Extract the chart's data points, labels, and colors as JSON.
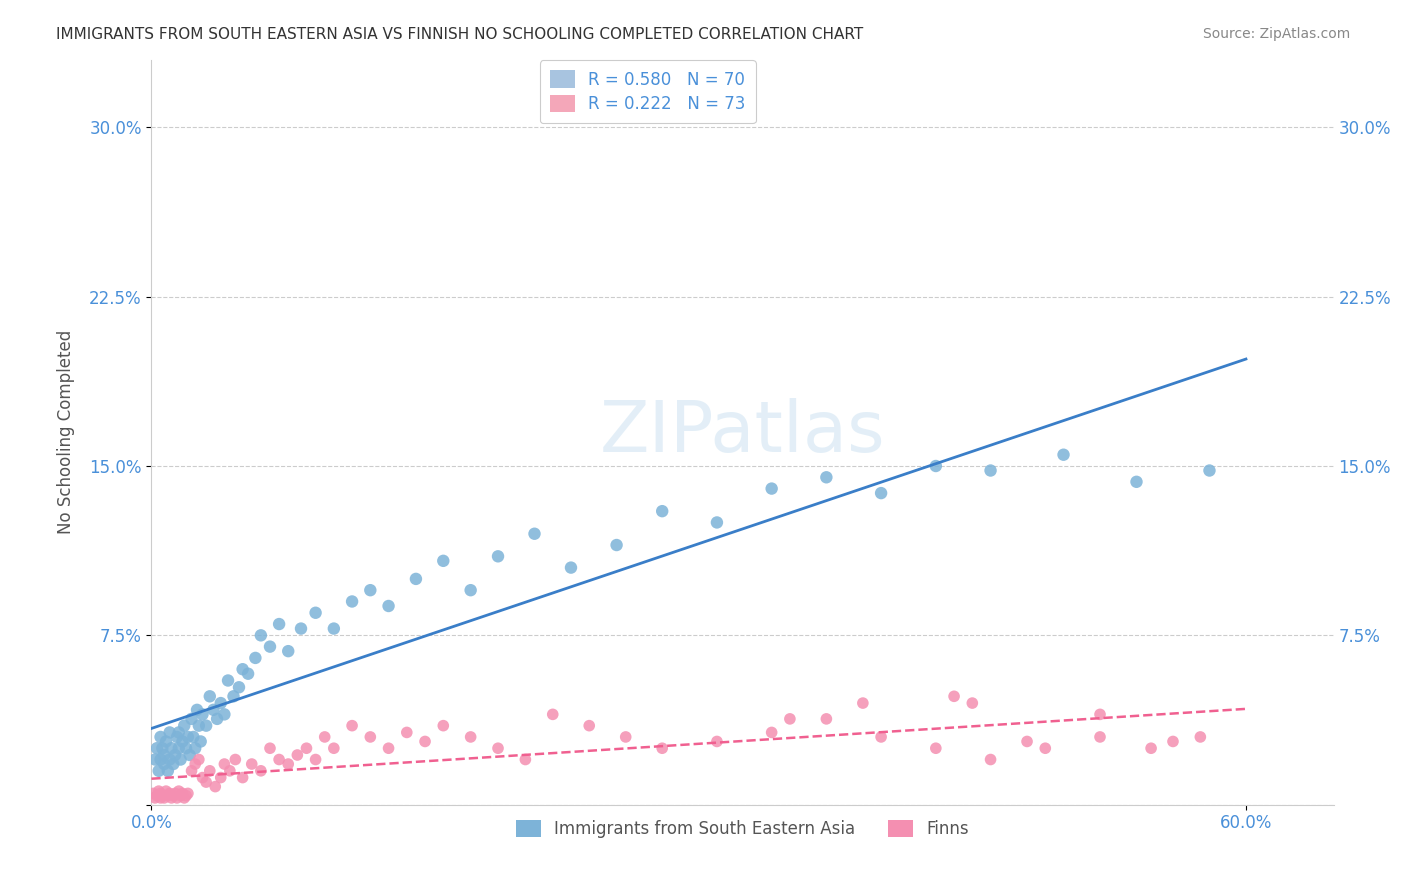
{
  "title": "IMMIGRANTS FROM SOUTH EASTERN ASIA VS FINNISH NO SCHOOLING COMPLETED CORRELATION CHART",
  "source": "Source: ZipAtlas.com",
  "xlabel_bottom": "",
  "ylabel": "No Schooling Completed",
  "xmin": 0.0,
  "xmax": 0.6,
  "ymin": 0.0,
  "ymax": 0.3,
  "yticks": [
    0.0,
    0.075,
    0.15,
    0.225,
    0.3
  ],
  "ytick_labels": [
    "",
    "7.5%",
    "15.0%",
    "22.5%",
    "30.0%"
  ],
  "xticks": [
    0.0,
    0.6
  ],
  "xtick_labels": [
    "0.0%",
    "60.0%"
  ],
  "grid_color": "#cccccc",
  "watermark": "ZIPatlas",
  "legend_label1": "R = 0.580   N = 70",
  "legend_label2": "R = 0.222   N = 73",
  "legend_color1": "#a8c4e0",
  "legend_color2": "#f4a7b9",
  "scatter_color1": "#7db3d8",
  "scatter_color2": "#f48fb1",
  "line_color1": "#3a7ec8",
  "line_color2": "#f06090",
  "R1": 0.58,
  "N1": 70,
  "R2": 0.222,
  "N2": 73,
  "legend_title_color": "#4a90d9",
  "axis_label_color": "#4a90d9",
  "tick_label_color": "#4a90d9",
  "background_color": "#ffffff",
  "plot_bg_color": "#ffffff",
  "scatter1_x": [
    0.002,
    0.003,
    0.004,
    0.005,
    0.005,
    0.006,
    0.007,
    0.007,
    0.008,
    0.009,
    0.01,
    0.01,
    0.011,
    0.012,
    0.013,
    0.014,
    0.015,
    0.015,
    0.016,
    0.017,
    0.018,
    0.019,
    0.02,
    0.021,
    0.022,
    0.023,
    0.024,
    0.025,
    0.026,
    0.027,
    0.028,
    0.03,
    0.032,
    0.034,
    0.036,
    0.038,
    0.04,
    0.042,
    0.045,
    0.048,
    0.05,
    0.053,
    0.057,
    0.06,
    0.065,
    0.07,
    0.075,
    0.082,
    0.09,
    0.1,
    0.11,
    0.12,
    0.13,
    0.145,
    0.16,
    0.175,
    0.19,
    0.21,
    0.23,
    0.255,
    0.28,
    0.31,
    0.34,
    0.37,
    0.4,
    0.43,
    0.46,
    0.5,
    0.54,
    0.58
  ],
  "scatter1_y": [
    0.02,
    0.025,
    0.015,
    0.03,
    0.02,
    0.025,
    0.018,
    0.022,
    0.028,
    0.015,
    0.032,
    0.02,
    0.025,
    0.018,
    0.022,
    0.03,
    0.025,
    0.032,
    0.02,
    0.028,
    0.035,
    0.025,
    0.03,
    0.022,
    0.038,
    0.03,
    0.025,
    0.042,
    0.035,
    0.028,
    0.04,
    0.035,
    0.048,
    0.042,
    0.038,
    0.045,
    0.04,
    0.055,
    0.048,
    0.052,
    0.06,
    0.058,
    0.065,
    0.075,
    0.07,
    0.08,
    0.068,
    0.078,
    0.085,
    0.078,
    0.09,
    0.095,
    0.088,
    0.1,
    0.108,
    0.095,
    0.11,
    0.12,
    0.105,
    0.115,
    0.13,
    0.125,
    0.14,
    0.145,
    0.138,
    0.15,
    0.148,
    0.155,
    0.143,
    0.148
  ],
  "scatter2_x": [
    0.001,
    0.002,
    0.003,
    0.004,
    0.005,
    0.005,
    0.006,
    0.007,
    0.008,
    0.009,
    0.01,
    0.011,
    0.012,
    0.013,
    0.014,
    0.015,
    0.016,
    0.017,
    0.018,
    0.019,
    0.02,
    0.022,
    0.024,
    0.026,
    0.028,
    0.03,
    0.032,
    0.035,
    0.038,
    0.04,
    0.043,
    0.046,
    0.05,
    0.055,
    0.06,
    0.065,
    0.07,
    0.075,
    0.08,
    0.085,
    0.09,
    0.095,
    0.1,
    0.11,
    0.12,
    0.13,
    0.14,
    0.15,
    0.16,
    0.175,
    0.19,
    0.205,
    0.22,
    0.24,
    0.26,
    0.28,
    0.31,
    0.34,
    0.37,
    0.4,
    0.43,
    0.46,
    0.49,
    0.52,
    0.548,
    0.56,
    0.575,
    0.44,
    0.39,
    0.35,
    0.48,
    0.52,
    0.45
  ],
  "scatter2_y": [
    0.005,
    0.003,
    0.004,
    0.006,
    0.003,
    0.005,
    0.004,
    0.003,
    0.006,
    0.004,
    0.005,
    0.003,
    0.004,
    0.005,
    0.003,
    0.006,
    0.004,
    0.005,
    0.003,
    0.004,
    0.005,
    0.015,
    0.018,
    0.02,
    0.012,
    0.01,
    0.015,
    0.008,
    0.012,
    0.018,
    0.015,
    0.02,
    0.012,
    0.018,
    0.015,
    0.025,
    0.02,
    0.018,
    0.022,
    0.025,
    0.02,
    0.03,
    0.025,
    0.035,
    0.03,
    0.025,
    0.032,
    0.028,
    0.035,
    0.03,
    0.025,
    0.02,
    0.04,
    0.035,
    0.03,
    0.025,
    0.028,
    0.032,
    0.038,
    0.03,
    0.025,
    0.02,
    0.025,
    0.03,
    0.025,
    0.028,
    0.03,
    0.048,
    0.045,
    0.038,
    0.028,
    0.04,
    0.045
  ]
}
